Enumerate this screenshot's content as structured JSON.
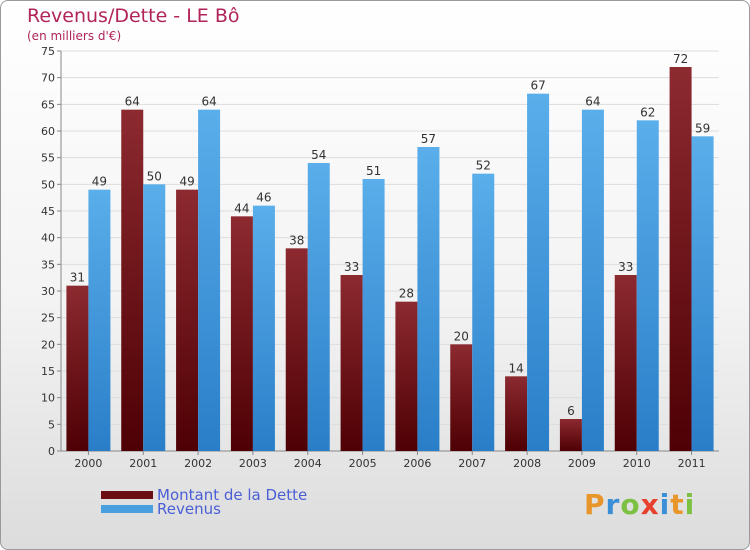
{
  "title": "Revenus/Dette - LE Bô",
  "subtitle": "(en milliers d'€)",
  "legend": [
    {
      "label": "Montant de la Dette",
      "color": "#6b0d12"
    },
    {
      "label": "Revenus",
      "color": "#4a9fe0"
    }
  ],
  "logo_text": "Proxiti",
  "colors": {
    "title": "#b0245a",
    "legend_text": "#4a5fd6",
    "debt": "#6b0d12",
    "revenue": "#4a9fe0"
  },
  "chart_data": {
    "type": "bar",
    "title": "Revenus/Dette - LE Bô",
    "subtitle": "(en milliers d'€)",
    "categories": [
      "2000",
      "2001",
      "2002",
      "2003",
      "2004",
      "2005",
      "2006",
      "2007",
      "2008",
      "2009",
      "2010",
      "2011"
    ],
    "series": [
      {
        "name": "Montant de la Dette",
        "values": [
          31,
          64,
          49,
          44,
          38,
          33,
          28,
          20,
          14,
          6,
          33,
          72
        ]
      },
      {
        "name": "Revenus",
        "values": [
          49,
          50,
          64,
          46,
          54,
          51,
          57,
          52,
          67,
          64,
          62,
          59
        ]
      }
    ],
    "ylim": [
      0,
      75
    ],
    "yticks": [
      0,
      5,
      10,
      15,
      20,
      25,
      30,
      35,
      40,
      45,
      50,
      55,
      60,
      65,
      70,
      75
    ],
    "grid": true,
    "legend_position": "bottom-left"
  }
}
